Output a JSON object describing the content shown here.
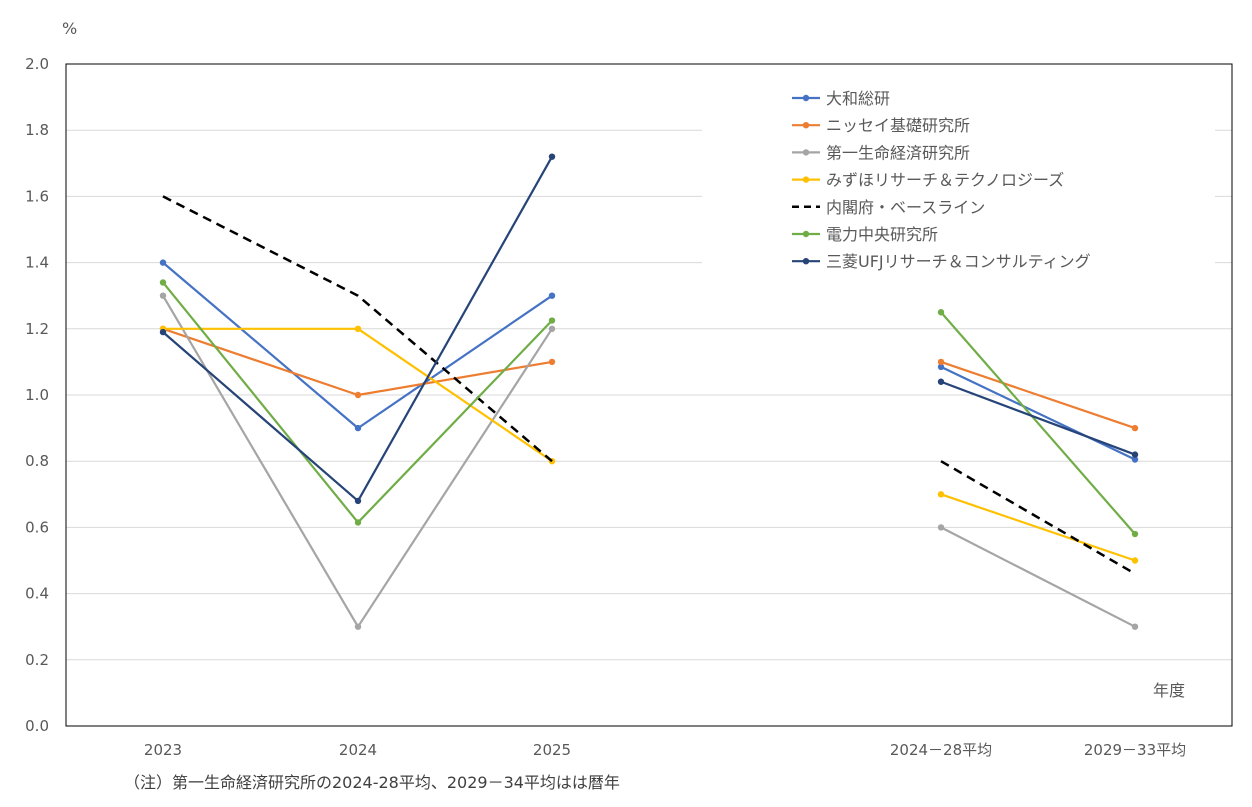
{
  "chart_data": {
    "type": "line",
    "ylabel": "%",
    "xlabel": "年度",
    "ylim": [
      0.0,
      2.0
    ],
    "yticks": [
      "0.0",
      "0.2",
      "0.4",
      "0.6",
      "0.8",
      "1.0",
      "1.2",
      "1.4",
      "1.6",
      "1.8",
      "2.0"
    ],
    "categories": [
      "2023",
      "2024",
      "2025",
      "2024－28平均",
      "2029－33平均"
    ],
    "grid": true,
    "legend_position": "top-right",
    "note": "（注）第一生命経済研究所の2024-28平均、2029－34平均はは暦年",
    "series": [
      {
        "name": "大和総研",
        "color": "#4472C4",
        "dashed": false,
        "values": [
          1.4,
          0.9,
          1.3,
          1.085,
          0.805
        ]
      },
      {
        "name": "ニッセイ基礎研究所",
        "color": "#ED7D31",
        "dashed": false,
        "values": [
          1.2,
          1.0,
          1.1,
          1.1,
          0.9
        ]
      },
      {
        "name": "第一生命経済研究所",
        "color": "#A5A5A5",
        "dashed": false,
        "values": [
          1.3,
          0.3,
          1.2,
          0.6,
          0.3
        ]
      },
      {
        "name": "みずほリサーチ＆テクノロジーズ",
        "color": "#FFC000",
        "dashed": false,
        "values": [
          1.2,
          1.2,
          0.8,
          0.7,
          0.5
        ]
      },
      {
        "name": "内閣府・ベースライン",
        "color": "#000000",
        "dashed": true,
        "values": [
          1.6,
          1.3,
          0.8,
          0.8,
          0.46
        ]
      },
      {
        "name": "電力中央研究所",
        "color": "#70AD47",
        "dashed": false,
        "values": [
          1.34,
          0.615,
          1.225,
          1.25,
          0.58
        ]
      },
      {
        "name": "三菱UFJリサーチ＆コンサルティング",
        "color": "#264478",
        "dashed": false,
        "values": [
          1.19,
          0.68,
          1.72,
          1.04,
          0.82
        ]
      }
    ]
  }
}
